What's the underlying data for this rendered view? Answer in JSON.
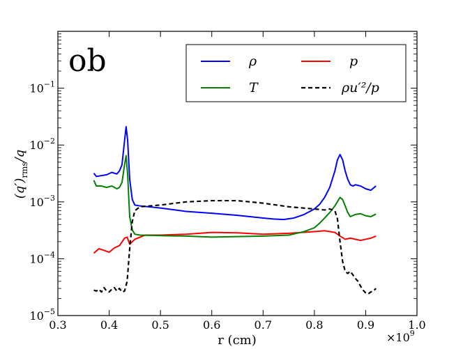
{
  "chart_data": {
    "type": "line",
    "panel_label": "ob",
    "xlabel": "r (cm)",
    "x_scale_label": "×10",
    "x_scale_exponent": "9",
    "ylabel": "(q′)rms/q",
    "ylabel_main": "(q′)",
    "ylabel_sub": "rms",
    "ylabel_tail": "/q",
    "xlim": [
      0.3,
      1.0
    ],
    "ylim": [
      1e-05,
      1
    ],
    "yscale": "log",
    "xticks": [
      {
        "value": 0.3,
        "label": "0.3"
      },
      {
        "value": 0.4,
        "label": "0.4"
      },
      {
        "value": 0.5,
        "label": "0.5"
      },
      {
        "value": 0.6,
        "label": "0.6"
      },
      {
        "value": 0.7,
        "label": "0.7"
      },
      {
        "value": 0.8,
        "label": "0.8"
      },
      {
        "value": 0.9,
        "label": "0.9"
      },
      {
        "value": 1.0,
        "label": "1.0"
      }
    ],
    "yticks": [
      {
        "exp": -5,
        "label": "10",
        "sup": "−5"
      },
      {
        "exp": -4,
        "label": "10",
        "sup": "−4"
      },
      {
        "exp": -3,
        "label": "10",
        "sup": "−3"
      },
      {
        "exp": -2,
        "label": "10",
        "sup": "−2"
      },
      {
        "exp": -1,
        "label": "10",
        "sup": "−1"
      }
    ],
    "legend_position": "top-right",
    "series": [
      {
        "name": "ρ",
        "color": "#0000ff",
        "dash": "solid",
        "x": [
          0.37,
          0.375,
          0.385,
          0.395,
          0.405,
          0.415,
          0.42,
          0.425,
          0.43,
          0.433,
          0.436,
          0.44,
          0.445,
          0.45,
          0.46,
          0.5,
          0.55,
          0.6,
          0.65,
          0.7,
          0.72,
          0.74,
          0.76,
          0.78,
          0.8,
          0.81,
          0.82,
          0.83,
          0.84,
          0.845,
          0.85,
          0.855,
          0.86,
          0.865,
          0.87,
          0.875,
          0.88,
          0.89,
          0.9,
          0.91,
          0.92
        ],
        "y": [
          0.0032,
          0.0028,
          0.0029,
          0.003,
          0.0033,
          0.0031,
          0.0035,
          0.0045,
          0.012,
          0.021,
          0.012,
          0.0025,
          0.0011,
          0.00088,
          0.00085,
          0.00078,
          0.00068,
          0.00063,
          0.00058,
          0.00052,
          0.0005,
          0.00049,
          0.00052,
          0.0006,
          0.00075,
          0.0009,
          0.0012,
          0.0018,
          0.0035,
          0.0055,
          0.0068,
          0.0055,
          0.0035,
          0.0025,
          0.002,
          0.0019,
          0.002,
          0.0019,
          0.0017,
          0.0016,
          0.0019
        ]
      },
      {
        "name": "p",
        "color": "#ff0000",
        "dash": "solid",
        "x": [
          0.37,
          0.38,
          0.39,
          0.4,
          0.41,
          0.42,
          0.43,
          0.435,
          0.44,
          0.45,
          0.47,
          0.5,
          0.55,
          0.6,
          0.65,
          0.7,
          0.75,
          0.8,
          0.82,
          0.84,
          0.85,
          0.86,
          0.87,
          0.88,
          0.89,
          0.9,
          0.91,
          0.92
        ],
        "y": [
          0.000125,
          0.00015,
          0.00014,
          0.00013,
          0.000155,
          0.00017,
          0.00023,
          0.00024,
          0.00018,
          0.00022,
          0.00026,
          0.00026,
          0.00027,
          0.00029,
          0.000285,
          0.00027,
          0.00028,
          0.0003,
          0.00031,
          0.00029,
          0.00025,
          0.00022,
          0.00023,
          0.00022,
          0.00021,
          0.00022,
          0.00023,
          0.00025
        ]
      },
      {
        "name": "T",
        "color": "#008000",
        "dash": "solid",
        "x": [
          0.37,
          0.375,
          0.385,
          0.395,
          0.405,
          0.415,
          0.42,
          0.425,
          0.43,
          0.433,
          0.436,
          0.44,
          0.445,
          0.45,
          0.46,
          0.5,
          0.55,
          0.6,
          0.65,
          0.7,
          0.75,
          0.78,
          0.8,
          0.81,
          0.82,
          0.83,
          0.84,
          0.85,
          0.855,
          0.86,
          0.865,
          0.87,
          0.88,
          0.89,
          0.9,
          0.91,
          0.92
        ],
        "y": [
          0.0024,
          0.0019,
          0.0019,
          0.0018,
          0.0019,
          0.0017,
          0.0018,
          0.0022,
          0.0045,
          0.0065,
          0.003,
          0.00055,
          0.00032,
          0.00027,
          0.00026,
          0.000255,
          0.00025,
          0.00024,
          0.000245,
          0.00025,
          0.00026,
          0.0003,
          0.00035,
          0.00042,
          0.00052,
          0.00065,
          0.00085,
          0.0012,
          0.0011,
          0.00085,
          0.00065,
          0.00055,
          0.0006,
          0.00062,
          0.00057,
          0.00055,
          0.00061
        ]
      },
      {
        "name": "ρu′²/p",
        "color": "#000000",
        "dash": "dashed",
        "x": [
          0.37,
          0.375,
          0.38,
          0.385,
          0.39,
          0.395,
          0.4,
          0.405,
          0.41,
          0.415,
          0.42,
          0.425,
          0.43,
          0.435,
          0.44,
          0.445,
          0.45,
          0.46,
          0.48,
          0.5,
          0.55,
          0.6,
          0.65,
          0.7,
          0.75,
          0.8,
          0.82,
          0.83,
          0.84,
          0.845,
          0.85,
          0.855,
          0.86,
          0.865,
          0.87,
          0.875,
          0.88,
          0.885,
          0.89,
          0.895,
          0.9,
          0.905,
          0.91,
          0.915,
          0.92
        ],
        "y": [
          2.8e-05,
          2.7e-05,
          2.9e-05,
          2.6e-05,
          3.1e-05,
          2.7e-05,
          2.6e-05,
          2.9e-05,
          3.1e-05,
          2.7e-05,
          3e-05,
          2.6e-05,
          2.7e-05,
          4e-05,
          0.00015,
          0.00045,
          0.0007,
          0.00082,
          0.00085,
          0.00088,
          0.001,
          0.00105,
          0.00105,
          0.00095,
          0.00082,
          0.00075,
          0.00072,
          0.00075,
          0.0007,
          0.0005,
          0.0002,
          9e-05,
          6e-05,
          5.5e-05,
          6e-05,
          5.2e-05,
          4.5e-05,
          4e-05,
          3.3e-05,
          2.8e-05,
          2.5e-05,
          2.4e-05,
          2.6e-05,
          2.7e-05,
          3e-05
        ]
      }
    ]
  }
}
